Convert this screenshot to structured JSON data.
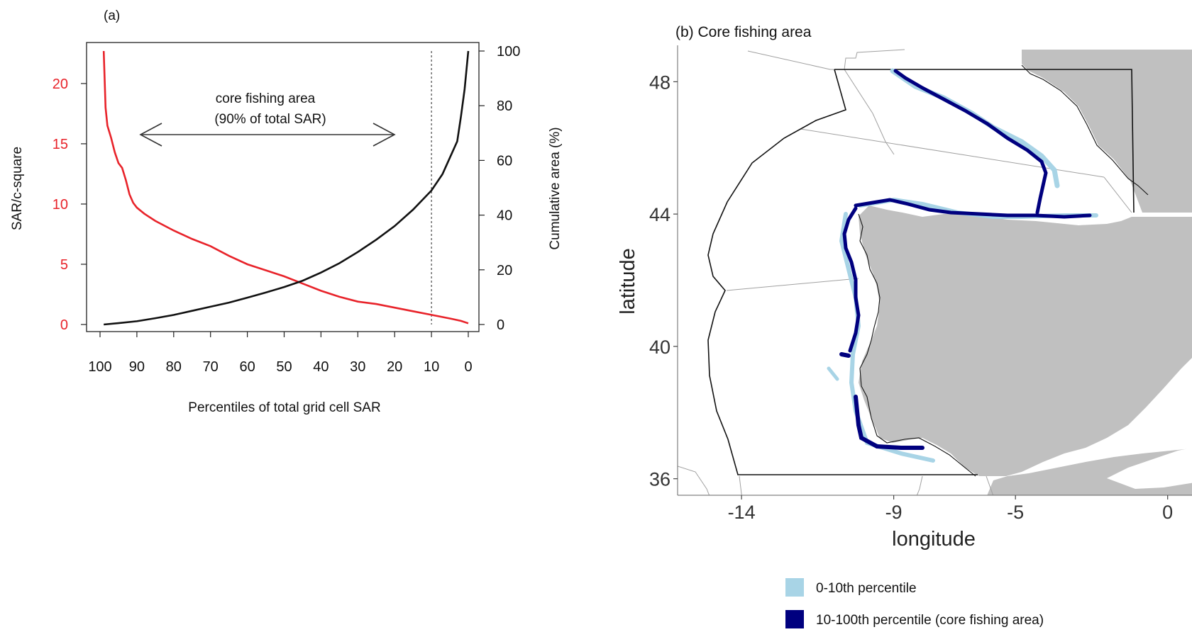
{
  "panel_a": {
    "label": "(a)",
    "annotation_line1": "core fishing area",
    "annotation_line2": "(90% of total SAR)"
  },
  "panel_b": {
    "title": "(b) Core fishing area",
    "legend": [
      {
        "label": "0-10th percentile",
        "color": "#a8d4e6"
      },
      {
        "label": "10-100th percentile (core fishing area)",
        "color": "#00007f"
      }
    ]
  },
  "colors": {
    "sar_curve": "#e8232a",
    "cumulative_curve": "#111111",
    "land": "#c0c0c0",
    "core_area": "#00007f",
    "low_percentile": "#a8d4e6"
  },
  "chart_data": [
    {
      "type": "line",
      "title": "(a)",
      "xlabel": "Percentiles of total grid cell SAR",
      "ylabel": "SAR/c-square",
      "y2label": "Cumulative area (%)",
      "xlim": [
        100,
        0
      ],
      "ylim": [
        0,
        22.7
      ],
      "y2lim": [
        0,
        100
      ],
      "x_ticks": [
        "100",
        "90",
        "80",
        "70",
        "60",
        "50",
        "40",
        "30",
        "20",
        "10",
        "0"
      ],
      "y_ticks": [
        "0",
        "5",
        "10",
        "15",
        "20"
      ],
      "y2_ticks": [
        "0",
        "20",
        "40",
        "60",
        "80",
        "100"
      ],
      "vline": 10,
      "series": [
        {
          "axis": "left",
          "color": "#e8232a",
          "x": [
            99,
            98.5,
            98,
            97,
            96,
            95,
            94,
            93,
            92,
            91,
            90,
            88,
            85,
            80,
            75,
            70,
            65,
            60,
            55,
            50,
            45,
            40,
            35,
            30,
            25,
            20,
            15,
            10,
            5,
            2,
            0
          ],
          "y": [
            22.7,
            18,
            16.5,
            15.5,
            14.3,
            13.4,
            13,
            12,
            10.8,
            10.1,
            9.7,
            9.2,
            8.6,
            7.8,
            7.1,
            6.5,
            5.7,
            5.0,
            4.5,
            4.0,
            3.4,
            2.8,
            2.3,
            1.9,
            1.7,
            1.4,
            1.1,
            0.8,
            0.5,
            0.3,
            0.1
          ]
        },
        {
          "axis": "right",
          "color": "#111111",
          "x": [
            99,
            95,
            90,
            85,
            80,
            75,
            70,
            65,
            60,
            55,
            50,
            45,
            40,
            35,
            30,
            25,
            20,
            15,
            10,
            7,
            5,
            3,
            2,
            1,
            0
          ],
          "y": [
            0,
            0.5,
            1.2,
            2.3,
            3.5,
            5,
            6.5,
            8,
            9.8,
            11.7,
            13.7,
            16,
            19,
            22.4,
            26.5,
            31,
            36,
            42,
            49,
            55,
            61,
            67,
            76,
            86,
            100
          ]
        }
      ]
    },
    {
      "type": "map",
      "title": "(b) Core fishing area",
      "xlabel": "longitude",
      "ylabel": "latitude",
      "xlim": [
        -16.1,
        0.8
      ],
      "ylim": [
        35.5,
        49.1
      ],
      "x_ticks": [
        -14,
        -9,
        -5,
        0
      ],
      "y_ticks": [
        36,
        40,
        44,
        48
      ],
      "legend": [
        "0-10th percentile",
        "10-100th percentile (core fishing area)"
      ]
    }
  ]
}
